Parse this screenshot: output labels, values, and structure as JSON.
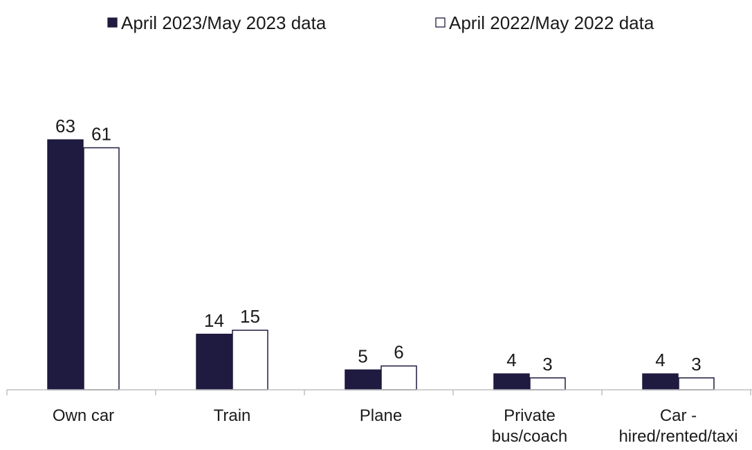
{
  "chart_data": {
    "type": "bar",
    "title": "",
    "xlabel": "",
    "ylabel": "",
    "categories": [
      [
        "Own car"
      ],
      [
        "Train"
      ],
      [
        "Plane"
      ],
      [
        "Private",
        "bus/coach"
      ],
      [
        "Car -",
        "hired/rented/taxi"
      ]
    ],
    "series": [
      {
        "name": "April 2023/May 2023 data",
        "values": [
          63,
          14,
          5,
          4,
          4
        ],
        "color": "#1f1a3f",
        "marker": "■"
      },
      {
        "name": "April 2022/May 2022 data",
        "values": [
          61,
          15,
          6,
          3,
          3
        ],
        "color": "#ffffff",
        "marker": "□"
      }
    ],
    "ylim": [
      0,
      63
    ],
    "grid": false,
    "legend_position": "top"
  }
}
